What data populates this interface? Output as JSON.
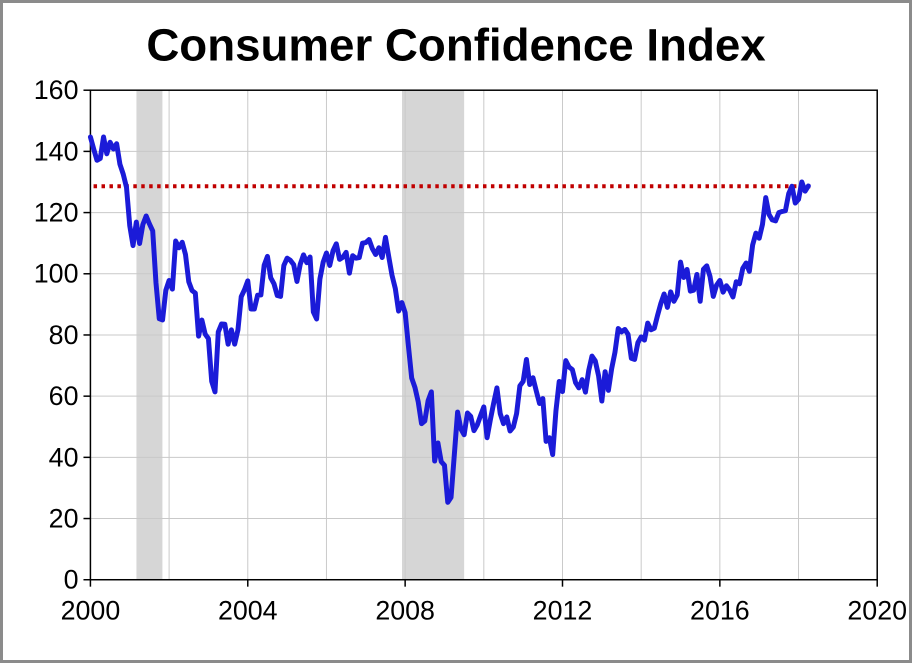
{
  "chart_data": {
    "type": "line",
    "title": "Consumer Confidence Index",
    "xlabel": "",
    "ylabel": "",
    "xlim": [
      2000,
      2020
    ],
    "ylim": [
      0,
      160
    ],
    "x_ticks": [
      2000,
      2004,
      2008,
      2012,
      2016,
      2020
    ],
    "y_ticks": [
      0,
      20,
      40,
      60,
      80,
      100,
      120,
      140,
      160
    ],
    "x_gridlines": [
      2002,
      2004,
      2006,
      2008,
      2010,
      2012,
      2014,
      2016,
      2018
    ],
    "y_gridlines": [
      20,
      40,
      60,
      80,
      100,
      120,
      140
    ],
    "grid": true,
    "legend": "none",
    "recession_bands": [
      {
        "from": 2001.17,
        "to": 2001.83
      },
      {
        "from": 2007.92,
        "to": 2009.5
      }
    ],
    "reference_line": {
      "value": 128.6,
      "from": 2000.08,
      "to": 2018.3,
      "style": "dotted"
    },
    "series": [
      {
        "name": "Consumer Confidence Index (monthly)",
        "x_start": 2000.0,
        "x_step": 0.0833333,
        "values": [
          144.7,
          140.8,
          137.1,
          137.7,
          144.7,
          139.2,
          143.0,
          140.8,
          142.5,
          135.8,
          132.6,
          128.3,
          115.7,
          109.2,
          116.9,
          109.9,
          116.1,
          118.9,
          116.3,
          114.0,
          97.0,
          85.3,
          84.9,
          94.6,
          97.8,
          95.0,
          110.7,
          108.5,
          110.3,
          106.3,
          97.4,
          94.5,
          93.7,
          79.6,
          84.9,
          80.3,
          78.8,
          64.8,
          61.4,
          81.0,
          83.6,
          83.5,
          77.0,
          81.7,
          77.0,
          81.7,
          92.5,
          94.8,
          97.7,
          88.5,
          88.5,
          93.0,
          93.1,
          102.8,
          105.7,
          98.7,
          96.7,
          92.9,
          92.6,
          102.7,
          105.1,
          104.4,
          103.0,
          97.5,
          103.1,
          106.2,
          103.6,
          105.5,
          87.5,
          85.2,
          98.3,
          103.8,
          106.8,
          102.7,
          107.5,
          109.8,
          104.7,
          105.4,
          107.0,
          100.2,
          105.9,
          105.1,
          105.3,
          110.0,
          110.2,
          111.2,
          108.2,
          106.3,
          108.5,
          105.3,
          111.9,
          105.6,
          99.5,
          95.2,
          87.8,
          90.6,
          87.3,
          76.4,
          65.9,
          62.8,
          58.1,
          51.0,
          51.9,
          58.5,
          61.4,
          38.8,
          44.7,
          38.6,
          37.4,
          25.3,
          26.9,
          40.8,
          54.8,
          49.3,
          47.4,
          54.5,
          53.4,
          48.7,
          50.6,
          53.6,
          56.5,
          46.4,
          52.3,
          57.7,
          62.7,
          54.3,
          51.0,
          53.2,
          48.6,
          49.9,
          54.3,
          63.4,
          64.8,
          72.0,
          63.8,
          66.0,
          61.7,
          57.6,
          59.2,
          45.2,
          46.4,
          40.9,
          55.2,
          64.8,
          61.5,
          71.6,
          69.5,
          68.7,
          64.4,
          62.7,
          65.4,
          61.3,
          68.4,
          73.1,
          71.5,
          66.7,
          58.4,
          68.0,
          61.9,
          69.0,
          74.3,
          82.1,
          81.0,
          81.8,
          80.2,
          72.4,
          72.0,
          77.5,
          79.4,
          78.3,
          83.9,
          81.7,
          82.2,
          86.4,
          90.3,
          93.4,
          89.0,
          94.1,
          91.0,
          93.1,
          103.8,
          98.8,
          101.4,
          94.3,
          94.6,
          99.8,
          91.0,
          101.5,
          102.6,
          99.1,
          92.6,
          96.3,
          97.8,
          94.0,
          96.1,
          94.7,
          92.4,
          97.4,
          96.7,
          101.8,
          103.5,
          100.8,
          109.4,
          113.3,
          111.6,
          116.1,
          124.9,
          119.4,
          117.6,
          117.3,
          120.0,
          120.4,
          120.6,
          126.2,
          128.6,
          123.1,
          124.3,
          130.0,
          127.0,
          128.7
        ]
      }
    ],
    "colors": {
      "line": "#1b1bd8",
      "reference": "#c00000",
      "recession_band": "#d6d6d6",
      "gridline": "#c9c9c9",
      "axis": "#000000",
      "text": "#000000",
      "background": "#ffffff",
      "outer_border": "#8b8b8b"
    }
  }
}
